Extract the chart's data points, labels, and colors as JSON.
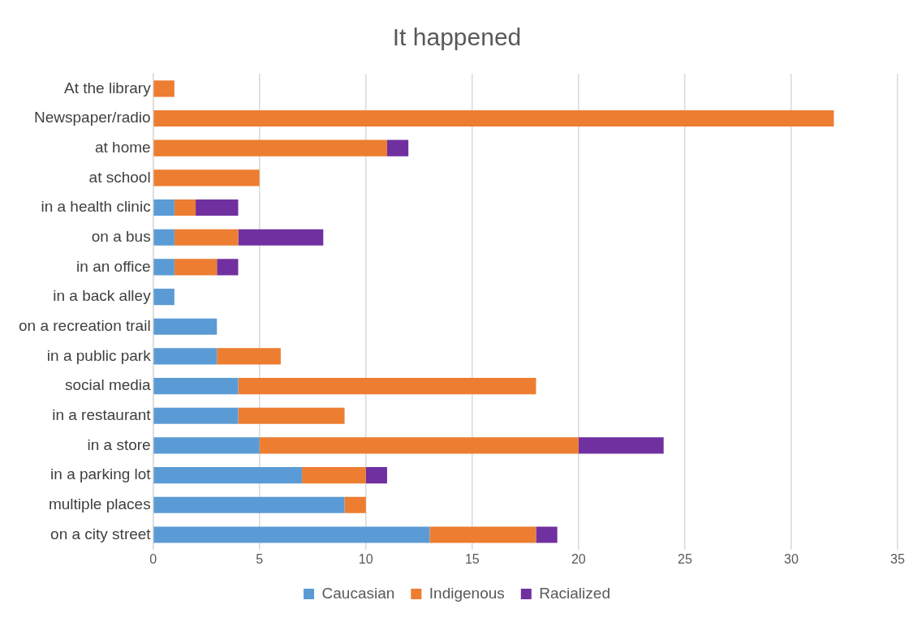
{
  "chart_data": {
    "type": "bar",
    "title": "It happened",
    "orientation": "horizontal",
    "stacked": true,
    "categories": [
      "At the library",
      "Newspaper/radio",
      "at home",
      "at school",
      "in a health clinic",
      "on a bus",
      "in an office",
      "in a back alley",
      "on a recreation trail",
      "in a public park",
      "social media",
      "in a restaurant",
      "in a store",
      "in a parking lot",
      "multiple places",
      "on a city street"
    ],
    "series": [
      {
        "name": "Caucasian",
        "color": "#5b9bd5",
        "values": [
          0,
          0,
          0,
          0,
          1,
          1,
          1,
          1,
          3,
          3,
          4,
          4,
          5,
          7,
          9,
          13
        ]
      },
      {
        "name": "Indigenous",
        "color": "#ed7d31",
        "values": [
          1,
          32,
          11,
          5,
          1,
          3,
          2,
          0,
          0,
          3,
          14,
          5,
          15,
          3,
          1,
          5
        ]
      },
      {
        "name": "Racialized",
        "color": "#7030a0",
        "values": [
          0,
          0,
          1,
          0,
          2,
          4,
          1,
          0,
          0,
          0,
          0,
          0,
          4,
          1,
          0,
          1
        ]
      }
    ],
    "xlim": [
      0,
      35
    ],
    "xticks": [
      0,
      5,
      10,
      15,
      20,
      25,
      30,
      35
    ],
    "grid": "x",
    "legend": "bottom"
  }
}
